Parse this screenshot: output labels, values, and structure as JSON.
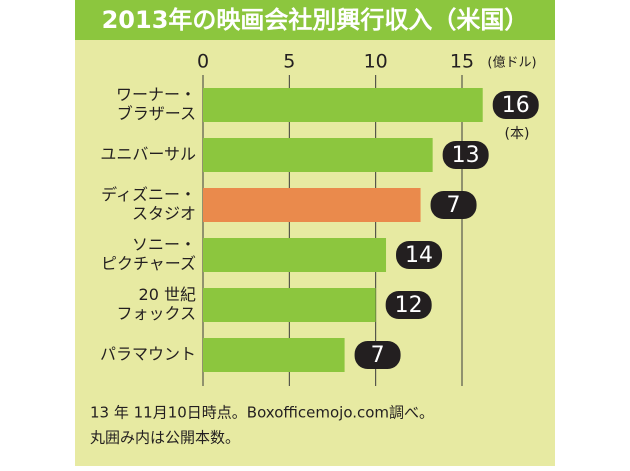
{
  "chart_data": {
    "type": "bar",
    "orientation": "horizontal",
    "title": "2013年の映画会社別興行収入（米国）",
    "x_unit": "(億ドル)",
    "categories": [
      [
        "ワーナー・",
        "ブラザース"
      ],
      [
        "ユニバーサル"
      ],
      [
        "ディズニー・",
        "スタジオ"
      ],
      [
        "ソニー・",
        "ピクチャーズ"
      ],
      [
        "20 世紀",
        "フォックス"
      ],
      [
        "パラマウント"
      ]
    ],
    "values": [
      16.2,
      13.3,
      12.6,
      10.6,
      10.0,
      8.2
    ],
    "colors": [
      "#8cc63e",
      "#8cc63e",
      "#ea8a4c",
      "#8cc63e",
      "#8cc63e",
      "#8cc63e"
    ],
    "counts": [
      16,
      13,
      7,
      14,
      12,
      7
    ],
    "counts_unit": "(本)",
    "xlim": [
      0,
      15
    ],
    "xticks": [
      0,
      5,
      10,
      15
    ],
    "grid": true,
    "footnote": [
      "13 年 11月10日時点。Boxofficemojo.com調べ。",
      "丸囲み内は公開本数。"
    ]
  }
}
